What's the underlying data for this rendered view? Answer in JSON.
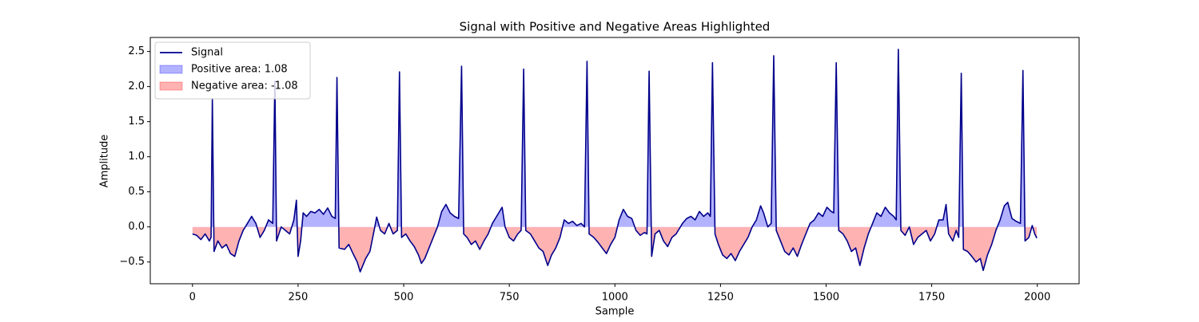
{
  "chart_data": {
    "type": "line",
    "title": "Signal with Positive and Negative Areas Highlighted",
    "xlabel": "Sample",
    "ylabel": "Amplitude",
    "xlim": [
      -99.95,
      2098.95
    ],
    "ylim": [
      -0.81,
      2.7
    ],
    "xticks": [
      0,
      250,
      500,
      750,
      1000,
      1250,
      1500,
      1750,
      2000
    ],
    "yticks": [
      {
        "value": -0.5,
        "label": "−0.5"
      },
      {
        "value": 0,
        "label": "0.0"
      },
      0.5,
      {
        "value": 1,
        "label": "1.0"
      },
      1.5,
      {
        "value": 2,
        "label": "2.0"
      },
      2.5
    ],
    "legend": "upper left",
    "x": [
      0,
      10,
      20,
      30,
      40,
      44,
      47,
      51,
      60,
      70,
      80,
      90,
      100,
      110,
      120,
      130,
      140,
      150,
      160,
      170,
      180,
      190,
      195,
      199,
      210,
      220,
      230,
      240,
      246,
      250,
      256,
      262,
      270,
      280,
      290,
      300,
      310,
      320,
      330,
      338,
      342,
      347,
      360,
      370,
      380,
      390,
      397,
      410,
      420,
      430,
      436,
      445,
      455,
      465,
      475,
      485,
      490,
      495,
      505,
      515,
      525,
      535,
      542,
      550,
      560,
      570,
      580,
      590,
      600,
      610,
      620,
      630,
      637,
      642,
      650,
      660,
      670,
      680,
      690,
      700,
      710,
      720,
      733,
      740,
      750,
      760,
      770,
      778,
      784,
      789,
      800,
      810,
      820,
      830,
      841,
      850,
      860,
      870,
      880,
      890,
      900,
      910,
      920,
      928,
      934,
      939,
      950,
      960,
      970,
      980,
      990,
      1000,
      1010,
      1020,
      1030,
      1040,
      1050,
      1060,
      1070,
      1076,
      1081,
      1087,
      1095,
      1105,
      1115,
      1125,
      1135,
      1145,
      1160,
      1170,
      1180,
      1190,
      1200,
      1210,
      1220,
      1226,
      1231,
      1237,
      1245,
      1255,
      1265,
      1275,
      1285,
      1295,
      1305,
      1315,
      1325,
      1335,
      1345,
      1352,
      1362,
      1370,
      1376,
      1382,
      1392,
      1402,
      1412,
      1422,
      1432,
      1442,
      1452,
      1462,
      1472,
      1482,
      1492,
      1502,
      1512,
      1518,
      1524,
      1530,
      1540,
      1550,
      1560,
      1570,
      1580,
      1590,
      1600,
      1610,
      1620,
      1630,
      1640,
      1650,
      1660,
      1666,
      1671,
      1677,
      1687,
      1697,
      1707,
      1717,
      1727,
      1737,
      1747,
      1757,
      1767,
      1777,
      1784,
      1790,
      1800,
      1808,
      1814,
      1820,
      1825,
      1835,
      1845,
      1855,
      1865,
      1872,
      1882,
      1892,
      1902,
      1912,
      1922,
      1930,
      1940,
      1950,
      1960,
      1966,
      1971,
      1980,
      1988,
      1994,
      1999
    ],
    "series": [
      {
        "name": "Signal",
        "color": "#00008b",
        "values": [
          -0.1,
          -0.12,
          -0.18,
          -0.1,
          -0.2,
          -0.15,
          1.83,
          -0.35,
          -0.2,
          -0.3,
          -0.25,
          -0.38,
          -0.42,
          -0.2,
          -0.05,
          0.05,
          0.15,
          0.05,
          -0.15,
          -0.05,
          0.1,
          0.05,
          2.08,
          -0.2,
          0.0,
          -0.05,
          -0.1,
          0.1,
          0.38,
          -0.42,
          -0.2,
          0.2,
          0.15,
          0.22,
          0.2,
          0.25,
          0.18,
          0.27,
          0.15,
          0.12,
          2.13,
          -0.3,
          -0.32,
          -0.25,
          -0.38,
          -0.5,
          -0.64,
          -0.45,
          -0.35,
          -0.05,
          0.14,
          -0.05,
          -0.1,
          0.05,
          -0.1,
          -0.05,
          2.21,
          -0.15,
          -0.1,
          -0.2,
          -0.28,
          -0.4,
          -0.52,
          -0.45,
          -0.3,
          -0.15,
          0.0,
          0.22,
          0.32,
          0.2,
          0.15,
          0.12,
          2.29,
          -0.1,
          -0.15,
          -0.25,
          -0.2,
          -0.32,
          -0.2,
          -0.1,
          0.05,
          0.15,
          0.28,
          0.0,
          -0.15,
          -0.2,
          -0.1,
          -0.05,
          2.25,
          -0.05,
          -0.1,
          -0.2,
          -0.3,
          -0.35,
          -0.55,
          -0.4,
          -0.3,
          -0.15,
          0.1,
          0.05,
          0.08,
          0.02,
          0.05,
          0.0,
          2.36,
          -0.1,
          -0.15,
          -0.22,
          -0.3,
          -0.38,
          -0.25,
          -0.15,
          0.1,
          0.25,
          0.15,
          0.12,
          -0.05,
          -0.12,
          -0.08,
          -0.1,
          2.22,
          -0.42,
          -0.1,
          -0.05,
          -0.2,
          -0.28,
          -0.15,
          -0.1,
          0.05,
          0.12,
          0.15,
          0.1,
          0.22,
          0.15,
          0.2,
          0.15,
          2.34,
          -0.1,
          -0.25,
          -0.4,
          -0.45,
          -0.38,
          -0.48,
          -0.35,
          -0.25,
          -0.15,
          0.0,
          0.1,
          0.3,
          0.2,
          0.0,
          0.05,
          2.44,
          -0.05,
          -0.2,
          -0.35,
          -0.4,
          -0.3,
          -0.42,
          -0.25,
          -0.1,
          0.05,
          0.1,
          0.2,
          0.15,
          0.28,
          0.22,
          0.2,
          2.34,
          -0.05,
          -0.1,
          -0.2,
          -0.35,
          -0.3,
          -0.55,
          -0.3,
          -0.1,
          0.05,
          0.2,
          0.15,
          0.28,
          0.2,
          0.15,
          0.1,
          2.53,
          -0.05,
          -0.12,
          0.0,
          -0.25,
          -0.15,
          -0.1,
          -0.05,
          -0.2,
          -0.1,
          0.1,
          0.1,
          0.32,
          -0.1,
          -0.2,
          -0.05,
          -0.15,
          2.19,
          -0.32,
          -0.35,
          -0.42,
          -0.5,
          -0.45,
          -0.62,
          -0.4,
          -0.25,
          -0.05,
          0.1,
          0.3,
          0.35,
          0.12,
          0.08,
          0.05,
          2.23,
          -0.2,
          -0.15,
          0.02,
          -0.1,
          -0.16
        ]
      }
    ],
    "fills": [
      {
        "name": "Positive area: 1.08",
        "color": "#0000ff",
        "alpha": 0.3,
        "side": "positive"
      },
      {
        "name": "Negative area: -1.08",
        "color": "#ff0000",
        "alpha": 0.3,
        "side": "negative"
      }
    ]
  }
}
